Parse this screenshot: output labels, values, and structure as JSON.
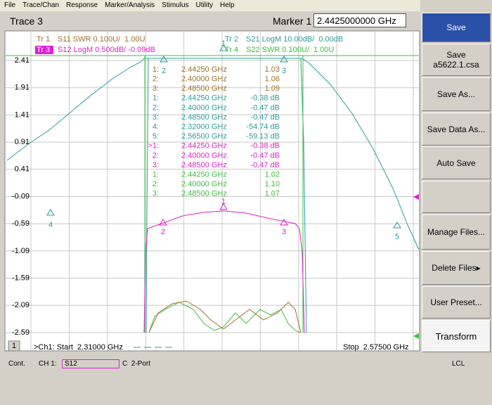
{
  "menu": [
    "File",
    "Trace/Chan",
    "Response",
    "Marker/Analysis",
    "Stimulus",
    "Utility",
    "Help"
  ],
  "toolbar": {
    "title": "Trace 3",
    "marker_label": "Marker 1",
    "marker_value": "2.4425000000 GHz"
  },
  "traces": [
    {
      "id": "Tr 1",
      "desc": "S11 SWR 0.100U/  1.00U",
      "color": "#a0702a"
    },
    {
      "id": "Tr 3",
      "desc": "S12 LogM 0.500dB/ -0.09dB",
      "color": "#e020d0",
      "active": true
    },
    {
      "id": "Tr 2",
      "desc": "S21 LogM 10.00dB/  0.00dB",
      "color": "#2a9d9d"
    },
    {
      "id": "Tr 4",
      "desc": "S22 SWR 0.100U/  1.00U",
      "color": "#3cc03c"
    }
  ],
  "y_axis_labels": [
    "2.41",
    "1.91",
    "1.41",
    "0.91",
    "0.41",
    "-0.09",
    "-0.59",
    "-1.09",
    "-1.59",
    "-2.09",
    "-2.59"
  ],
  "marker_table": [
    {
      "color": "#a0702a",
      "rows": [
        [
          "1:",
          "2.44250 GHz",
          "1.03"
        ],
        [
          "2:",
          "2.40000 GHz",
          "1.06"
        ],
        [
          "3:",
          "2.48500 GHz",
          "1.09"
        ]
      ]
    },
    {
      "color": "#2a9d9d",
      "rows": [
        [
          "1:",
          "2.44250 GHz",
          "-0.38 dB"
        ],
        [
          "2:",
          "2.40000 GHz",
          "-0.47 dB"
        ],
        [
          "3:",
          "2.48500 GHz",
          "-0.47 dB"
        ],
        [
          "4:",
          "2.32000 GHz",
          "-54.74 dB"
        ],
        [
          "5:",
          "2.56500 GHz",
          "-59.13 dB"
        ]
      ]
    },
    {
      "color": "#e020d0",
      "rows": [
        [
          ">1:",
          "2.44250 GHz",
          "-0.38 dB"
        ],
        [
          "2:",
          "2.40000 GHz",
          "-0.47 dB"
        ],
        [
          "3:",
          "2.48500 GHz",
          "-0.47 dB"
        ]
      ]
    },
    {
      "color": "#3cc03c",
      "rows": [
        [
          "1:",
          "2.44250 GHz",
          "1.02"
        ],
        [
          "2:",
          "2.40000 GHz",
          "1.10"
        ],
        [
          "3:",
          "2.48500 GHz",
          "1.07"
        ]
      ]
    }
  ],
  "chart_flags": [
    "2",
    "3",
    "1",
    "2",
    "3",
    "1",
    "4",
    "5"
  ],
  "footer": {
    "channel": "1",
    "start": ">Ch1: Start  2.31000 GHz",
    "stop": "Stop  2.57500 GHz"
  },
  "status": {
    "mode": "Cont.",
    "channel": "CH 1:",
    "measurement": "S12",
    "cal": "C  2-Port",
    "ref": "LCL"
  },
  "softkeys": [
    {
      "label": "Save"
    },
    {
      "label": "Save",
      "sublabel": "a5622.1.csa"
    },
    {
      "label": "Save As..."
    },
    {
      "label": "Save Data As..."
    },
    {
      "label": "Auto Save"
    },
    {
      "label": "Manage Files..."
    },
    {
      "label": "Delete Files"
    },
    {
      "label": "User Preset..."
    },
    {
      "label": "Transform"
    }
  ]
}
